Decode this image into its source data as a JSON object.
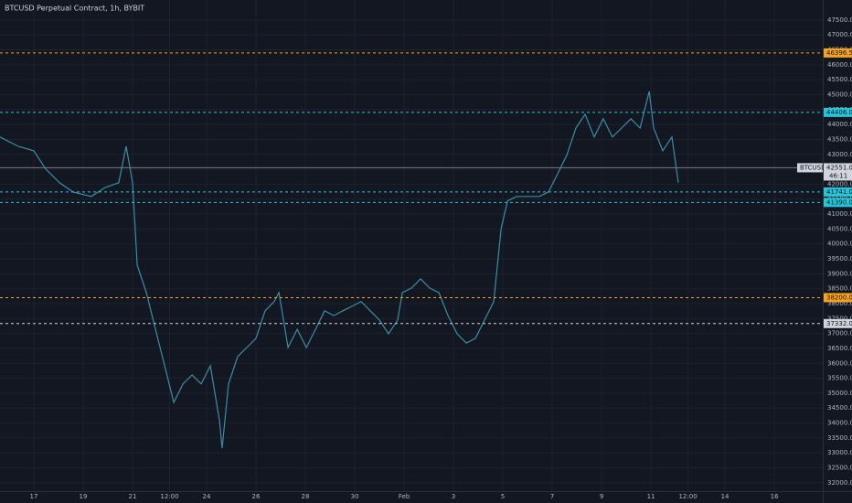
{
  "chart_data": {
    "type": "line",
    "title": "BTCUSD Perpetual Contract, 1h, BYBIT",
    "series": [
      {
        "name": "BTCUSD",
        "color": "#3b8ea5",
        "x": [
          15.63,
          16.37,
          17.0,
          17.48,
          18.04,
          18.59,
          19.33,
          19.89,
          20.44,
          20.74,
          21.0,
          21.19,
          21.56,
          21.93,
          22.3,
          22.67,
          23.04,
          23.41,
          23.78,
          24.15,
          24.52,
          24.63,
          24.89,
          25.26,
          25.63,
          26.0,
          26.37,
          26.74,
          26.93,
          27.3,
          27.67,
          28.04,
          28.41,
          28.78,
          29.15,
          29.52,
          29.89,
          30.26,
          30.63,
          31.0,
          31.37,
          31.74,
          31.93,
          32.3,
          32.67,
          33.04,
          33.41,
          33.78,
          34.15,
          34.52,
          34.89,
          35.26,
          35.63,
          35.93,
          36.19,
          36.56,
          36.93,
          37.48,
          37.85,
          38.22,
          38.59,
          38.96,
          39.33,
          39.7,
          40.07,
          40.44,
          40.81,
          41.19,
          41.56,
          41.93,
          42.11,
          42.48,
          42.85,
          43.11
        ],
        "values": [
          43580,
          43270,
          43120,
          42510,
          42050,
          41740,
          41590,
          41890,
          42050,
          43270,
          42050,
          39290,
          38370,
          37140,
          35920,
          34690,
          35310,
          35610,
          35310,
          35920,
          34080,
          33160,
          35310,
          36230,
          36530,
          36840,
          37760,
          38070,
          38370,
          36530,
          37140,
          36530,
          37140,
          37760,
          37600,
          37760,
          37910,
          38070,
          37760,
          37450,
          36990,
          37450,
          38370,
          38520,
          38830,
          38520,
          38370,
          37600,
          36990,
          36680,
          36840,
          37450,
          38070,
          40520,
          41440,
          41590,
          41590,
          41590,
          41740,
          42350,
          42970,
          43880,
          44340,
          43580,
          44190,
          43580,
          43880,
          44190,
          43880,
          45110,
          43880,
          43120,
          43580,
          42050
        ]
      }
    ],
    "levels": [
      {
        "value": 46396.5,
        "color": "#f7a21b"
      },
      {
        "value": 44406,
        "label": "44406.0",
        "color": "#26c6da"
      },
      {
        "value": 41741,
        "label": "41741.0",
        "color": "#26c6da"
      },
      {
        "value": 41390,
        "label": "41390.0",
        "color": "#26c6da"
      },
      {
        "value": 38200,
        "label": "38200.0",
        "color": "#f7a21b"
      },
      {
        "value": 37332,
        "label": "37332.0",
        "color": "#d1d4dc"
      }
    ],
    "last_price": {
      "symbol": "BTCUSD",
      "value": 42551,
      "label": "42551.0",
      "countdown": "46:11"
    },
    "xlim": [
      15.63,
      48.96
    ],
    "xticks": [
      17,
      19,
      21,
      {
        "value": 22.5,
        "label": "12:00"
      },
      24,
      26,
      28,
      30,
      {
        "value": 32,
        "label": "Feb"
      },
      {
        "value": 34,
        "label": "3"
      },
      {
        "value": 36,
        "label": "5"
      },
      {
        "value": 38,
        "label": "7"
      },
      {
        "value": 40,
        "label": "9"
      },
      {
        "value": 42,
        "label": "11"
      },
      {
        "value": 43.5,
        "label": "12:00"
      },
      {
        "value": 45,
        "label": "14"
      },
      {
        "value": 47,
        "label": "16"
      }
    ],
    "ylim": [
      31720,
      48170
    ],
    "yticks": [
      {
        "value": 32000,
        "label": "32000.0"
      },
      {
        "value": 32500,
        "label": "32500.0"
      },
      {
        "value": 33000,
        "label": "33000.0"
      },
      {
        "value": 33500,
        "label": "33500.0"
      },
      {
        "value": 34000,
        "label": "34000.0"
      },
      {
        "value": 34500,
        "label": "34500.0"
      },
      {
        "value": 35000,
        "label": "35000.0"
      },
      {
        "value": 35500,
        "label": "35500.0"
      },
      {
        "value": 36000,
        "label": "36000.0"
      },
      {
        "value": 36500,
        "label": "36500.0"
      },
      {
        "value": 37000,
        "label": "37000.0"
      },
      {
        "value": 37500,
        "label": "37500.0"
      },
      {
        "value": 38000,
        "label": "38000.0"
      },
      {
        "value": 38500,
        "label": "38500.0"
      },
      {
        "value": 39000,
        "label": "39000.0"
      },
      {
        "value": 39500,
        "label": "39500.0"
      },
      {
        "value": 40000,
        "label": "40000.0"
      },
      {
        "value": 40500,
        "label": "40500.0"
      },
      {
        "value": 41000,
        "label": "41000.0"
      },
      {
        "value": 41500,
        "label": "41500.0"
      },
      {
        "value": 42000,
        "label": "42000.0"
      },
      {
        "value": 42500,
        "label": "42500.0"
      },
      {
        "value": 43000,
        "label": "43000.0"
      },
      {
        "value": 43500,
        "label": "43500.0"
      },
      {
        "value": 44000,
        "label": "44000.0"
      },
      {
        "value": 44500,
        "label": "44500.0"
      },
      {
        "value": 45000,
        "label": "45000.0"
      },
      {
        "value": 45500,
        "label": "45500.0"
      },
      {
        "value": 46000,
        "label": "46000.0"
      },
      {
        "value": 46500,
        "label": "46500.0"
      },
      {
        "value": 47000,
        "label": "47000.0"
      },
      {
        "value": 47500,
        "label": "47500.0"
      }
    ],
    "grid": true
  }
}
